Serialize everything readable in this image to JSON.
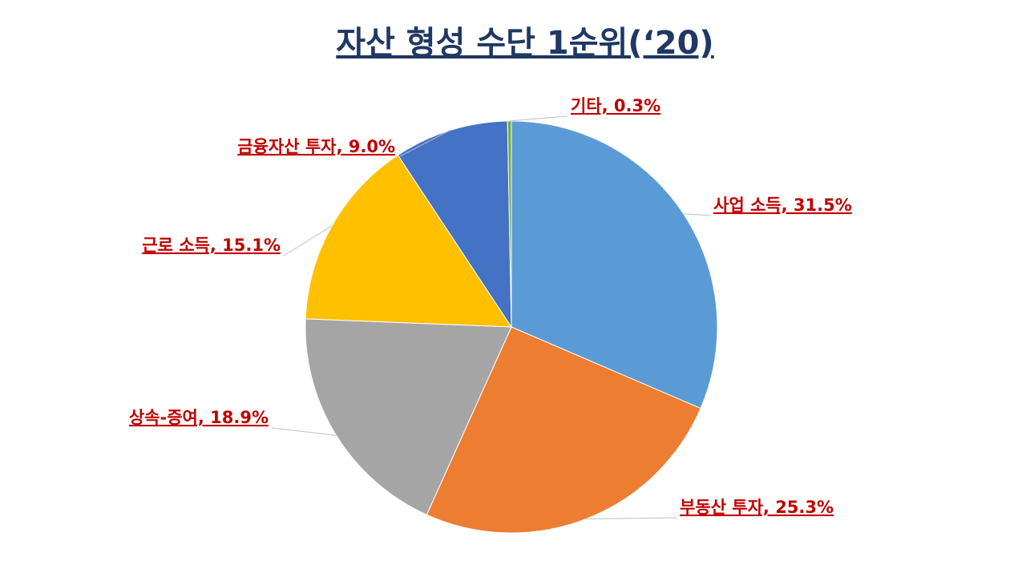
{
  "chart_data": {
    "type": "pie",
    "title": "자산 형성 수단 1순위(‘20)",
    "values": [
      31.5,
      25.3,
      18.9,
      15.1,
      9.0,
      0.3
    ],
    "value_labels": [
      "사업 소득, 31.5%",
      "부동산 투자, 25.3%",
      "상속-증여, 18.9%",
      "근로 소득, 15.1%",
      "금융자산 투자, 9.0%",
      "기타, 0.3%"
    ],
    "colors": [
      "#5b9bd5",
      "#ed7d31",
      "#a5a5a5",
      "#ffc000",
      "#4472c4",
      "#70ad47"
    ]
  }
}
